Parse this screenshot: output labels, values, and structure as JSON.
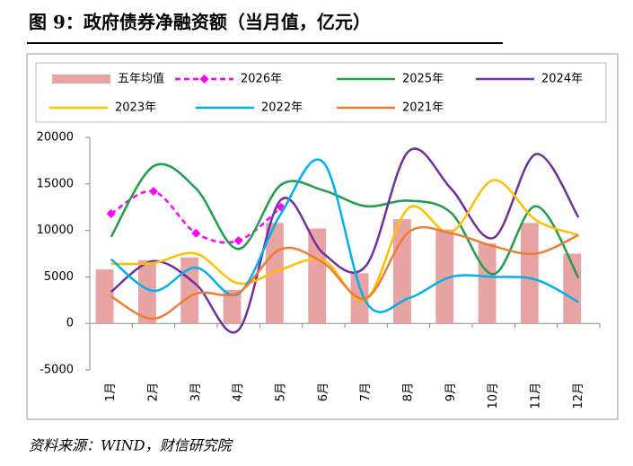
{
  "chart_data": {
    "type": "combo",
    "title": "图 9：政府债券净融资额（当月值，亿元）",
    "source": "资料来源：WIND，财信研究院",
    "categories": [
      "1月",
      "2月",
      "3月",
      "4月",
      "5月",
      "6月",
      "7月",
      "8月",
      "9月",
      "10月",
      "11月",
      "12月"
    ],
    "ylim": [
      -5000,
      20000
    ],
    "yticks": [
      -5000,
      0,
      5000,
      10000,
      15000,
      20000
    ],
    "series": [
      {
        "name": "五年均值",
        "type": "bar",
        "color": "#e8a3a3",
        "values": [
          5800,
          6800,
          7100,
          3600,
          10800,
          10200,
          5400,
          11200,
          10100,
          8600,
          10800,
          7500
        ]
      },
      {
        "name": "2026年",
        "type": "line",
        "color": "#ff00ff",
        "dashed": true,
        "marker": "diamond",
        "values": [
          11800,
          14200,
          9700,
          8900,
          12500,
          null,
          null,
          null,
          null,
          null,
          null,
          null
        ]
      },
      {
        "name": "2025年",
        "type": "line",
        "color": "#1f9e48",
        "values": [
          9300,
          16900,
          14500,
          8000,
          14900,
          14300,
          12600,
          13200,
          11900,
          5300,
          12600,
          4900
        ]
      },
      {
        "name": "2024年",
        "type": "line",
        "color": "#7030a0",
        "values": [
          3400,
          6700,
          4200,
          -700,
          13300,
          7500,
          6200,
          18500,
          14500,
          9200,
          18200,
          11400
        ]
      },
      {
        "name": "2023年",
        "type": "line",
        "color": "#ffc000",
        "values": [
          6400,
          6500,
          7500,
          4300,
          5800,
          6800,
          2600,
          12400,
          9800,
          15400,
          11100,
          9500
        ]
      },
      {
        "name": "2022年",
        "type": "line",
        "color": "#00b0f0",
        "values": [
          6900,
          3500,
          6000,
          3200,
          11800,
          17300,
          2300,
          2700,
          5000,
          5000,
          4700,
          2300
        ]
      },
      {
        "name": "2021年",
        "type": "line",
        "color": "#ed7d31",
        "values": [
          2900,
          500,
          3200,
          3300,
          8000,
          6500,
          2700,
          9800,
          9700,
          8300,
          7500,
          9500
        ]
      }
    ]
  }
}
